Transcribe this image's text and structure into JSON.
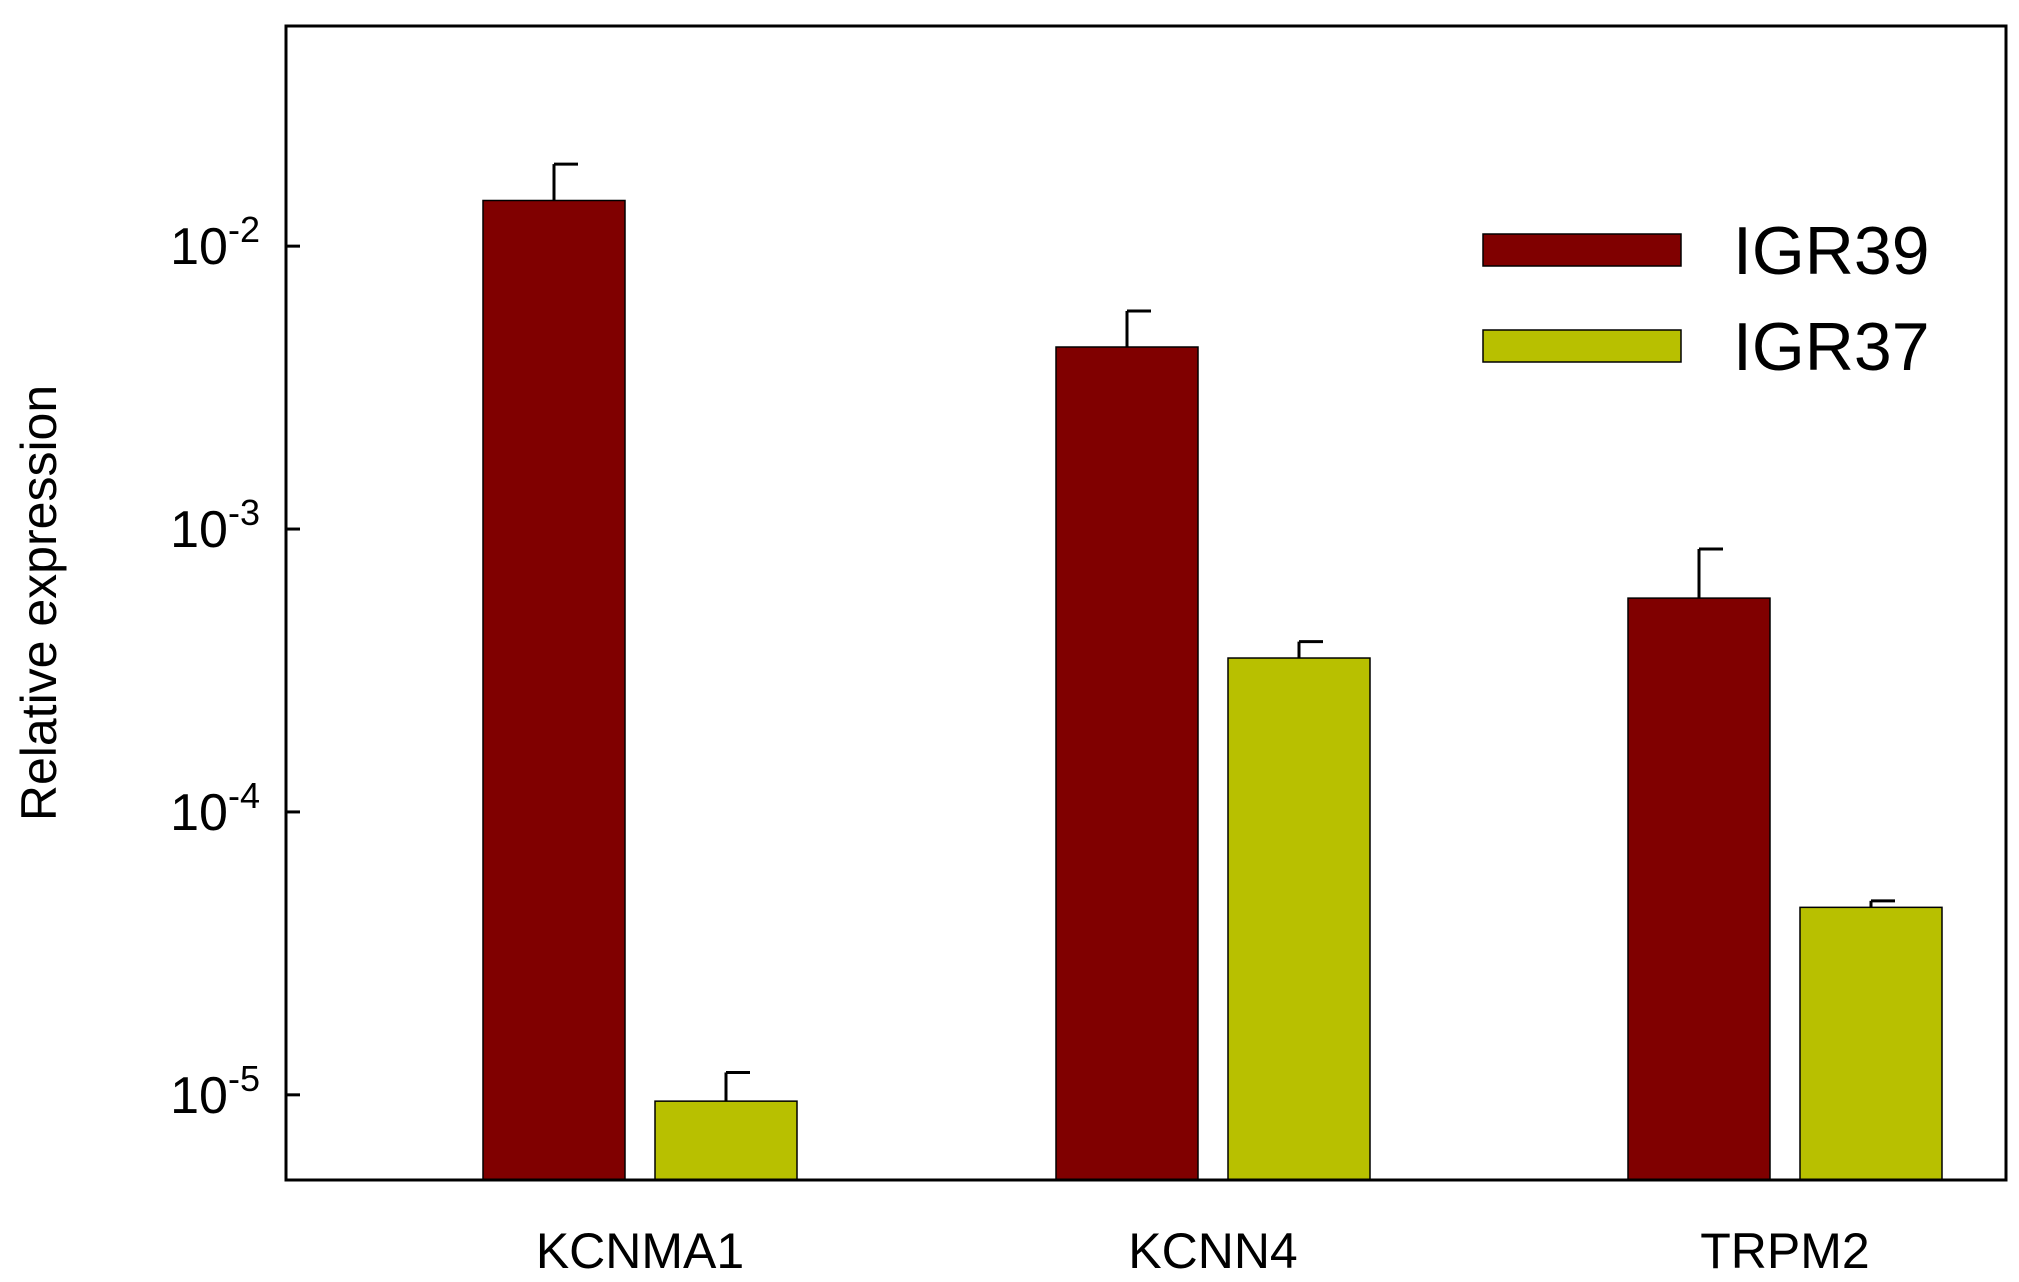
{
  "chart_data": {
    "type": "bar",
    "title": "",
    "xlabel": "",
    "ylabel": "Relative expression",
    "yscale": "log",
    "ylim": [
      5e-06,
      0.06
    ],
    "grid": false,
    "legend_position": "top-right",
    "categories": [
      "KCNMA1",
      "KCNN4",
      "TRPM2"
    ],
    "series": [
      {
        "name": "IGR39",
        "color": "#800000",
        "values": [
          0.0145,
          0.0044,
          0.00057
        ],
        "error": [
          0.005,
          0.0015,
          0.00028
        ]
      },
      {
        "name": "IGR37",
        "color": "#b8c000",
        "values": [
          9.5e-06,
          0.00035,
          4.6e-05
        ],
        "error": [
          2.5e-06,
          5e-05,
          2.5e-06
        ]
      }
    ],
    "y_ticks": [
      {
        "value": 0.01,
        "base": "10",
        "exp": "-2"
      },
      {
        "value": 0.001,
        "base": "10",
        "exp": "-3"
      },
      {
        "value": 0.0001,
        "base": "10",
        "exp": "-4"
      },
      {
        "value": 1e-05,
        "base": "10",
        "exp": "-5"
      }
    ]
  }
}
